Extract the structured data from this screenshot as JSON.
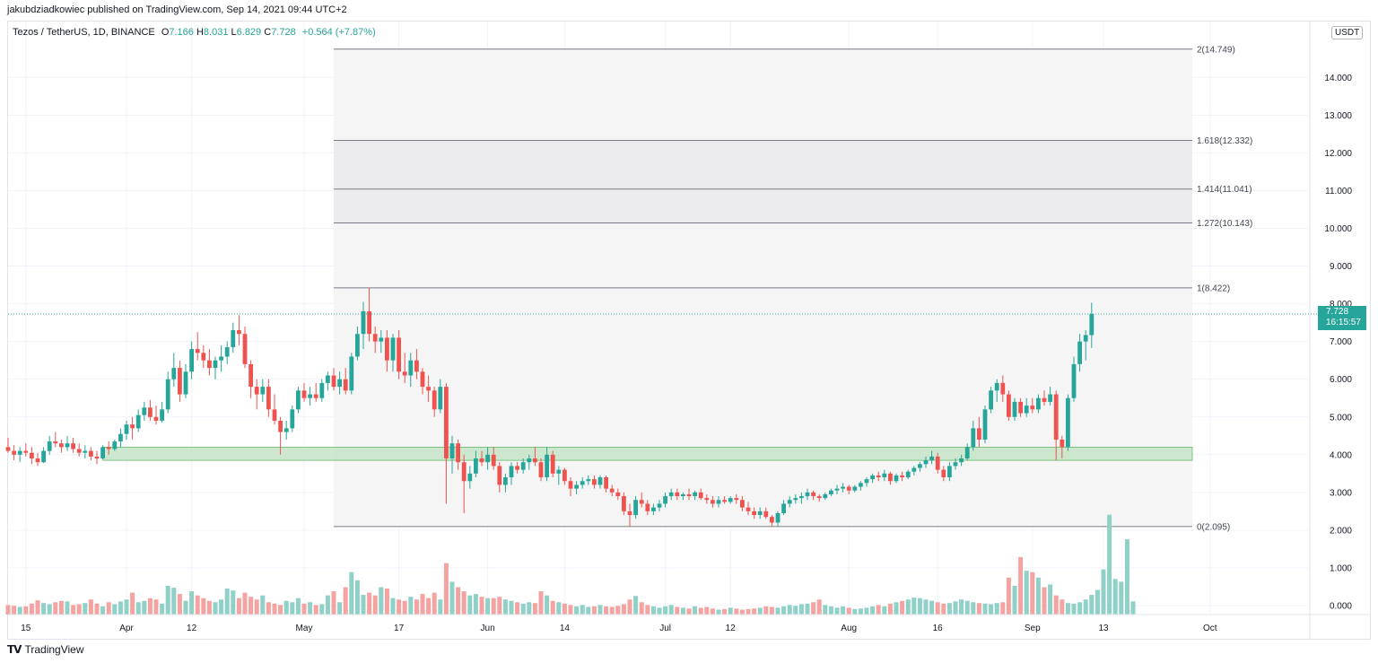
{
  "header": {
    "published_by": "jakubdziadkowiec published on TradingView.com, Sep 14, 2021 09:44 UTC+2"
  },
  "symbol": {
    "name": "Tezos / TetherUS, 1D, BINANCE",
    "open_label": "O",
    "open": "7.166",
    "high_label": "H",
    "high": "8.031",
    "low_label": "L",
    "low": "6.829",
    "close_label": "C",
    "close": "7.728",
    "change": "+0.564 (+7.87%)"
  },
  "currency": "USDT",
  "last_price": {
    "price": "7.728",
    "countdown": "16:15:57"
  },
  "footer": {
    "brand": "TradingView"
  },
  "colors": {
    "up": "#26a69a",
    "down": "#ef5350",
    "up_volume": "#8fd0c7",
    "down_volume": "#f5a3a1",
    "support_zone": "#c8e6c9",
    "fib_band": "#f5f5f5",
    "fib_band_dark": "#ececef",
    "grid": "#f0f3fa"
  },
  "chart_data": {
    "type": "candlestick",
    "y_axis": {
      "ticks": [
        "0.000",
        "1.000",
        "2.000",
        "3.000",
        "4.000",
        "5.000",
        "6.000",
        "7.000",
        "8.000",
        "9.000",
        "10.000",
        "11.000",
        "12.000",
        "13.000",
        "14.000"
      ],
      "ylim": [
        -0.2,
        15
      ]
    },
    "x_axis": {
      "ticks": [
        {
          "date": "2021-03-15",
          "label": "15"
        },
        {
          "date": "2021-04-01",
          "label": "Apr"
        },
        {
          "date": "2021-04-12",
          "label": "12"
        },
        {
          "date": "2021-05-01",
          "label": "May"
        },
        {
          "date": "2021-05-17",
          "label": "17"
        },
        {
          "date": "2021-06-01",
          "label": "Jun"
        },
        {
          "date": "2021-06-14",
          "label": "14"
        },
        {
          "date": "2021-07-01",
          "label": "Jul"
        },
        {
          "date": "2021-07-12",
          "label": "12"
        },
        {
          "date": "2021-08-01",
          "label": "Aug"
        },
        {
          "date": "2021-08-16",
          "label": "16"
        },
        {
          "date": "2021-09-01",
          "label": "Sep"
        },
        {
          "date": "2021-09-13",
          "label": "13"
        },
        {
          "date": "2021-10-01",
          "label": "Oct"
        }
      ],
      "xlim": [
        "2021-03-12",
        "2021-10-10"
      ]
    },
    "fib_extension": {
      "start_date": "2021-05-06",
      "end_date": "2021-09-28",
      "levels": [
        {
          "label": "0(2.095)",
          "value": 2.095
        },
        {
          "label": "1(8.422)",
          "value": 8.422
        },
        {
          "label": "1.272(10.143)",
          "value": 10.143
        },
        {
          "label": "1.414(11.041)",
          "value": 11.041
        },
        {
          "label": "1.618(12.332)",
          "value": 12.332
        },
        {
          "label": "2(14.749)",
          "value": 14.749
        }
      ]
    },
    "support_zone": {
      "start_date": "2021-03-28",
      "end_date": "2021-09-28",
      "low": 3.85,
      "high": 4.2
    },
    "last_price_line": 7.728,
    "series_start_date": "2021-03-12",
    "ohlc": [
      [
        4.2,
        4.45,
        4.05,
        4.1
      ],
      [
        4.1,
        4.25,
        3.85,
        4.0
      ],
      [
        4.0,
        4.2,
        3.8,
        4.1
      ],
      [
        4.1,
        4.3,
        3.95,
        4.05
      ],
      [
        4.05,
        4.2,
        3.75,
        3.9
      ],
      [
        3.9,
        4.05,
        3.7,
        3.8
      ],
      [
        3.8,
        4.2,
        3.78,
        4.1
      ],
      [
        4.1,
        4.5,
        4.0,
        4.35
      ],
      [
        4.35,
        4.6,
        4.2,
        4.3
      ],
      [
        4.3,
        4.4,
        4.05,
        4.2
      ],
      [
        4.2,
        4.5,
        4.1,
        4.3
      ],
      [
        4.3,
        4.45,
        4.05,
        4.15
      ],
      [
        4.15,
        4.3,
        3.95,
        4.05
      ],
      [
        4.05,
        4.25,
        3.9,
        4.1
      ],
      [
        4.1,
        4.2,
        3.85,
        3.95
      ],
      [
        3.95,
        4.1,
        3.75,
        3.9
      ],
      [
        3.9,
        4.25,
        3.88,
        4.2
      ],
      [
        4.2,
        4.35,
        4.0,
        4.15
      ],
      [
        4.15,
        4.4,
        4.1,
        4.35
      ],
      [
        4.35,
        4.7,
        4.2,
        4.55
      ],
      [
        4.55,
        4.9,
        4.4,
        4.8
      ],
      [
        4.8,
        5.0,
        4.4,
        4.7
      ],
      [
        4.7,
        5.2,
        4.6,
        5.05
      ],
      [
        5.05,
        5.4,
        4.9,
        5.25
      ],
      [
        5.25,
        5.45,
        4.9,
        5.0
      ],
      [
        5.0,
        5.3,
        4.8,
        4.9
      ],
      [
        4.9,
        5.4,
        4.85,
        5.2
      ],
      [
        5.2,
        6.2,
        5.1,
        6.0
      ],
      [
        6.0,
        6.7,
        5.8,
        6.3
      ],
      [
        6.3,
        6.5,
        5.4,
        5.6
      ],
      [
        5.6,
        6.4,
        5.5,
        6.2
      ],
      [
        6.2,
        7.0,
        6.0,
        6.8
      ],
      [
        6.8,
        7.25,
        6.5,
        6.7
      ],
      [
        6.7,
        6.9,
        6.3,
        6.5
      ],
      [
        6.5,
        6.8,
        6.1,
        6.3
      ],
      [
        6.3,
        6.6,
        6.0,
        6.5
      ],
      [
        6.5,
        6.9,
        6.2,
        6.6
      ],
      [
        6.6,
        7.0,
        6.4,
        6.85
      ],
      [
        6.85,
        7.5,
        6.7,
        7.3
      ],
      [
        7.3,
        7.7,
        6.9,
        7.2
      ],
      [
        7.2,
        7.4,
        6.3,
        6.4
      ],
      [
        6.4,
        6.5,
        5.5,
        5.8
      ],
      [
        5.8,
        6.0,
        5.2,
        5.6
      ],
      [
        5.6,
        6.0,
        5.4,
        5.8
      ],
      [
        5.8,
        6.0,
        5.0,
        5.2
      ],
      [
        5.2,
        5.6,
        4.8,
        4.9
      ],
      [
        4.9,
        5.0,
        4.0,
        4.6
      ],
      [
        4.6,
        4.9,
        4.4,
        4.7
      ],
      [
        4.7,
        5.3,
        4.6,
        5.2
      ],
      [
        5.2,
        5.8,
        5.1,
        5.7
      ],
      [
        5.7,
        5.9,
        5.4,
        5.5
      ],
      [
        5.5,
        5.8,
        5.3,
        5.6
      ],
      [
        5.6,
        5.9,
        5.4,
        5.5
      ],
      [
        5.5,
        6.0,
        5.4,
        5.9
      ],
      [
        5.9,
        6.2,
        5.7,
        6.1
      ],
      [
        6.1,
        6.3,
        5.7,
        5.8
      ],
      [
        5.8,
        6.2,
        5.6,
        6.0
      ],
      [
        6.0,
        6.3,
        5.6,
        5.7
      ],
      [
        5.7,
        6.7,
        5.6,
        6.6
      ],
      [
        6.6,
        7.4,
        6.5,
        7.2
      ],
      [
        7.2,
        8.05,
        6.8,
        7.8
      ],
      [
        7.8,
        8.42,
        7.0,
        7.2
      ],
      [
        7.2,
        7.4,
        6.7,
        7.0
      ],
      [
        7.0,
        7.3,
        6.7,
        7.1
      ],
      [
        7.1,
        7.3,
        6.2,
        6.5
      ],
      [
        6.5,
        7.2,
        6.2,
        7.1
      ],
      [
        7.1,
        7.3,
        6.0,
        6.2
      ],
      [
        6.2,
        6.7,
        5.9,
        6.1
      ],
      [
        6.1,
        6.7,
        5.8,
        6.5
      ],
      [
        6.5,
        6.8,
        6.0,
        6.2
      ],
      [
        6.2,
        6.3,
        5.6,
        5.8
      ],
      [
        5.8,
        6.1,
        5.4,
        5.7
      ],
      [
        5.7,
        5.8,
        5.0,
        5.2
      ],
      [
        5.2,
        6.0,
        5.1,
        5.8
      ],
      [
        5.8,
        5.9,
        2.7,
        3.9
      ],
      [
        3.9,
        4.5,
        3.5,
        4.3
      ],
      [
        4.3,
        4.4,
        3.6,
        3.8
      ],
      [
        3.8,
        4.0,
        2.45,
        3.3
      ],
      [
        3.3,
        3.7,
        3.1,
        3.5
      ],
      [
        3.5,
        4.1,
        3.4,
        3.9
      ],
      [
        3.9,
        4.1,
        3.7,
        3.8
      ],
      [
        3.8,
        4.2,
        3.6,
        4.0
      ],
      [
        4.0,
        4.2,
        3.6,
        3.7
      ],
      [
        3.7,
        3.8,
        3.0,
        3.2
      ],
      [
        3.2,
        3.5,
        3.0,
        3.4
      ],
      [
        3.4,
        3.8,
        3.2,
        3.7
      ],
      [
        3.7,
        3.8,
        3.5,
        3.6
      ],
      [
        3.6,
        3.9,
        3.5,
        3.8
      ],
      [
        3.8,
        4.0,
        3.6,
        3.9
      ],
      [
        3.9,
        4.2,
        3.7,
        3.8
      ],
      [
        3.8,
        3.9,
        3.3,
        3.4
      ],
      [
        3.4,
        4.2,
        3.3,
        4.0
      ],
      [
        4.0,
        4.1,
        3.4,
        3.5
      ],
      [
        3.5,
        3.7,
        3.2,
        3.6
      ],
      [
        3.6,
        3.65,
        3.2,
        3.3
      ],
      [
        3.3,
        3.4,
        2.9,
        3.1
      ],
      [
        3.1,
        3.3,
        2.95,
        3.2
      ],
      [
        3.2,
        3.4,
        3.1,
        3.3
      ],
      [
        3.3,
        3.45,
        3.2,
        3.35
      ],
      [
        3.35,
        3.45,
        3.1,
        3.2
      ],
      [
        3.2,
        3.45,
        3.1,
        3.4
      ],
      [
        3.4,
        3.45,
        3.0,
        3.1
      ],
      [
        3.1,
        3.2,
        2.9,
        3.0
      ],
      [
        3.0,
        3.1,
        2.8,
        2.9
      ],
      [
        2.9,
        3.0,
        2.4,
        2.5
      ],
      [
        2.5,
        2.7,
        2.1,
        2.4
      ],
      [
        2.4,
        2.9,
        2.3,
        2.8
      ],
      [
        2.8,
        3.0,
        2.6,
        2.7
      ],
      [
        2.7,
        2.8,
        2.4,
        2.5
      ],
      [
        2.5,
        2.7,
        2.4,
        2.6
      ],
      [
        2.6,
        2.8,
        2.5,
        2.7
      ],
      [
        2.7,
        3.0,
        2.6,
        2.9
      ],
      [
        2.9,
        3.1,
        2.8,
        3.0
      ],
      [
        3.0,
        3.1,
        2.8,
        2.9
      ],
      [
        2.9,
        3.0,
        2.8,
        2.95
      ],
      [
        2.95,
        3.1,
        2.8,
        2.9
      ],
      [
        2.9,
        3.05,
        2.8,
        3.0
      ],
      [
        3.0,
        3.1,
        2.8,
        2.85
      ],
      [
        2.85,
        2.95,
        2.7,
        2.8
      ],
      [
        2.8,
        2.9,
        2.6,
        2.7
      ],
      [
        2.7,
        2.9,
        2.6,
        2.8
      ],
      [
        2.8,
        2.9,
        2.7,
        2.75
      ],
      [
        2.75,
        2.9,
        2.7,
        2.85
      ],
      [
        2.85,
        2.95,
        2.7,
        2.8
      ],
      [
        2.8,
        2.9,
        2.5,
        2.6
      ],
      [
        2.6,
        2.75,
        2.4,
        2.5
      ],
      [
        2.5,
        2.6,
        2.3,
        2.4
      ],
      [
        2.4,
        2.6,
        2.3,
        2.5
      ],
      [
        2.5,
        2.6,
        2.3,
        2.35
      ],
      [
        2.35,
        2.4,
        2.1,
        2.2
      ],
      [
        2.2,
        2.5,
        2.1,
        2.45
      ],
      [
        2.45,
        2.8,
        2.4,
        2.7
      ],
      [
        2.7,
        2.9,
        2.6,
        2.8
      ],
      [
        2.8,
        2.95,
        2.7,
        2.85
      ],
      [
        2.85,
        3.0,
        2.7,
        2.9
      ],
      [
        2.9,
        3.1,
        2.8,
        3.0
      ],
      [
        3.0,
        3.05,
        2.8,
        2.9
      ],
      [
        2.9,
        2.95,
        2.75,
        2.85
      ],
      [
        2.85,
        3.0,
        2.8,
        2.95
      ],
      [
        2.95,
        3.1,
        2.9,
        3.05
      ],
      [
        3.05,
        3.2,
        2.95,
        3.1
      ],
      [
        3.1,
        3.25,
        3.0,
        3.15
      ],
      [
        3.15,
        3.2,
        2.95,
        3.05
      ],
      [
        3.05,
        3.2,
        3.0,
        3.15
      ],
      [
        3.15,
        3.3,
        3.05,
        3.25
      ],
      [
        3.25,
        3.4,
        3.15,
        3.35
      ],
      [
        3.35,
        3.5,
        3.25,
        3.45
      ],
      [
        3.45,
        3.55,
        3.3,
        3.4
      ],
      [
        3.4,
        3.6,
        3.3,
        3.5
      ],
      [
        3.5,
        3.55,
        3.2,
        3.3
      ],
      [
        3.3,
        3.5,
        3.25,
        3.45
      ],
      [
        3.45,
        3.55,
        3.3,
        3.4
      ],
      [
        3.4,
        3.6,
        3.35,
        3.55
      ],
      [
        3.55,
        3.7,
        3.45,
        3.65
      ],
      [
        3.65,
        3.8,
        3.55,
        3.75
      ],
      [
        3.75,
        3.95,
        3.65,
        3.85
      ],
      [
        3.85,
        4.1,
        3.75,
        3.95
      ],
      [
        3.95,
        4.05,
        3.5,
        3.6
      ],
      [
        3.6,
        3.7,
        3.3,
        3.4
      ],
      [
        3.4,
        3.8,
        3.3,
        3.7
      ],
      [
        3.7,
        3.9,
        3.6,
        3.8
      ],
      [
        3.8,
        4.0,
        3.7,
        3.9
      ],
      [
        3.9,
        4.3,
        3.85,
        4.2
      ],
      [
        4.2,
        4.9,
        4.1,
        4.7
      ],
      [
        4.7,
        5.0,
        4.2,
        4.4
      ],
      [
        4.4,
        5.3,
        4.3,
        5.2
      ],
      [
        5.2,
        5.8,
        5.1,
        5.7
      ],
      [
        5.7,
        6.0,
        5.4,
        5.9
      ],
      [
        5.9,
        6.1,
        5.4,
        5.6
      ],
      [
        5.6,
        5.7,
        4.9,
        5.0
      ],
      [
        5.0,
        5.5,
        4.9,
        5.4
      ],
      [
        5.4,
        5.5,
        5.0,
        5.1
      ],
      [
        5.1,
        5.5,
        5.0,
        5.3
      ],
      [
        5.3,
        5.5,
        5.1,
        5.2
      ],
      [
        5.2,
        5.6,
        5.1,
        5.5
      ],
      [
        5.5,
        5.7,
        5.3,
        5.4
      ],
      [
        5.4,
        5.8,
        5.3,
        5.6
      ],
      [
        5.6,
        5.7,
        3.85,
        4.4
      ],
      [
        4.4,
        4.5,
        3.9,
        4.2
      ],
      [
        4.2,
        5.6,
        4.1,
        5.5
      ],
      [
        5.5,
        6.6,
        5.4,
        6.4
      ],
      [
        6.4,
        7.2,
        6.2,
        7.0
      ],
      [
        7.0,
        7.3,
        6.5,
        7.17
      ],
      [
        7.17,
        8.03,
        6.83,
        7.73
      ]
    ],
    "volume": [
      0.35,
      0.32,
      0.28,
      0.3,
      0.4,
      0.52,
      0.42,
      0.38,
      0.45,
      0.5,
      0.48,
      0.35,
      0.38,
      0.42,
      0.55,
      0.4,
      0.3,
      0.45,
      0.38,
      0.48,
      0.55,
      0.8,
      0.45,
      0.5,
      0.6,
      0.55,
      0.4,
      1.05,
      0.98,
      0.75,
      0.5,
      0.85,
      0.7,
      0.6,
      0.5,
      0.45,
      0.55,
      0.95,
      0.88,
      0.6,
      0.8,
      0.65,
      0.55,
      0.7,
      0.45,
      0.4,
      0.35,
      0.5,
      0.45,
      0.6,
      0.4,
      0.45,
      0.35,
      0.38,
      0.7,
      0.85,
      0.45,
      1.0,
      1.55,
      1.25,
      0.72,
      0.8,
      0.7,
      1.0,
      0.95,
      0.6,
      0.55,
      0.5,
      0.65,
      0.55,
      0.75,
      0.6,
      0.8,
      0.55,
      1.88,
      1.2,
      1.0,
      0.85,
      0.7,
      0.75,
      0.65,
      0.6,
      0.6,
      0.65,
      0.55,
      0.5,
      0.45,
      0.4,
      0.45,
      0.42,
      0.85,
      0.7,
      0.5,
      0.45,
      0.4,
      0.35,
      0.3,
      0.35,
      0.28,
      0.3,
      0.35,
      0.3,
      0.28,
      0.32,
      0.38,
      0.55,
      0.68,
      0.45,
      0.35,
      0.3,
      0.25,
      0.3,
      0.35,
      0.28,
      0.25,
      0.22,
      0.3,
      0.25,
      0.28,
      0.22,
      0.18,
      0.2,
      0.25,
      0.22,
      0.18,
      0.2,
      0.22,
      0.25,
      0.3,
      0.28,
      0.25,
      0.3,
      0.35,
      0.32,
      0.38,
      0.4,
      0.45,
      0.55,
      0.35,
      0.3,
      0.25,
      0.3,
      0.25,
      0.2,
      0.22,
      0.25,
      0.3,
      0.35,
      0.3,
      0.4,
      0.45,
      0.5,
      0.55,
      0.62,
      0.6,
      0.55,
      0.5,
      0.45,
      0.4,
      0.42,
      0.48,
      0.55,
      0.5,
      0.45,
      0.42,
      0.4,
      0.38,
      0.42,
      0.45,
      1.35,
      1.05,
      2.1,
      1.6,
      1.55,
      1.35,
      1.0,
      1.1,
      0.7,
      0.55,
      0.42,
      0.4,
      0.45,
      0.55,
      0.72,
      0.9,
      1.65,
      3.65,
      1.3,
      1.2,
      2.75,
      0.48
    ]
  }
}
